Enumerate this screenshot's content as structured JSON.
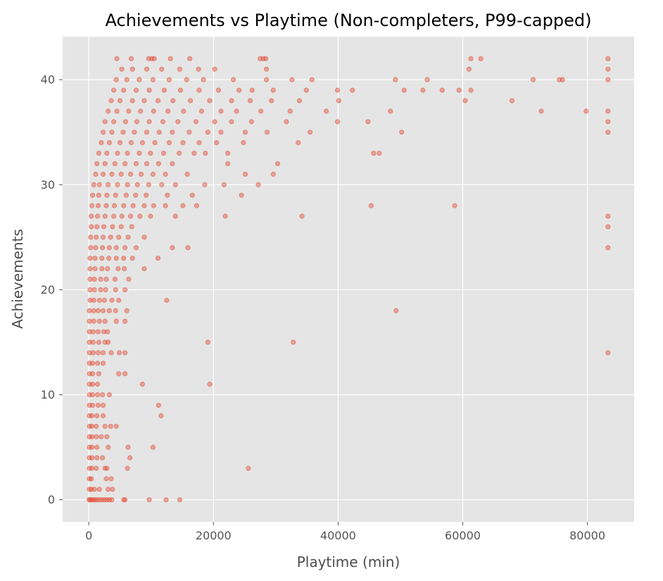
{
  "chart_data": {
    "type": "scatter",
    "title": "Achievements vs Playtime (Non-completers, P99-capped)",
    "xlabel": "Playtime (min)",
    "ylabel": "Achievements",
    "xlim": [
      -4200,
      87500
    ],
    "ylim": [
      -2.1,
      44.1
    ],
    "xticks": [
      0,
      20000,
      40000,
      60000,
      80000
    ],
    "xtick_labels": [
      "0",
      "20000",
      "40000",
      "60000",
      "80000"
    ],
    "yticks": [
      0,
      10,
      20,
      30,
      40
    ],
    "ytick_labels": [
      "0",
      "10",
      "20",
      "30",
      "40"
    ],
    "grid": true,
    "background": "#E5E5E5",
    "marker_color": "#E24A33",
    "points": [
      [
        60,
        0
      ],
      [
        200,
        0
      ],
      [
        400,
        0
      ],
      [
        700,
        0
      ],
      [
        1000,
        0
      ],
      [
        1300,
        0
      ],
      [
        1700,
        0
      ],
      [
        2100,
        0
      ],
      [
        2500,
        0
      ],
      [
        2900,
        0
      ],
      [
        3300,
        0
      ],
      [
        3700,
        0
      ],
      [
        5600,
        0
      ],
      [
        5800,
        0
      ],
      [
        9700,
        0
      ],
      [
        12400,
        0
      ],
      [
        14600,
        0
      ],
      [
        100,
        1
      ],
      [
        400,
        1
      ],
      [
        900,
        1
      ],
      [
        1700,
        1
      ],
      [
        3100,
        1
      ],
      [
        3800,
        1
      ],
      [
        100,
        2
      ],
      [
        400,
        2
      ],
      [
        2800,
        2
      ],
      [
        3600,
        2
      ],
      [
        100,
        3
      ],
      [
        500,
        3
      ],
      [
        1200,
        3
      ],
      [
        2600,
        3
      ],
      [
        2900,
        3
      ],
      [
        6200,
        3
      ],
      [
        25600,
        3
      ],
      [
        100,
        4
      ],
      [
        500,
        4
      ],
      [
        1300,
        4
      ],
      [
        2200,
        4
      ],
      [
        6600,
        4
      ],
      [
        100,
        5
      ],
      [
        500,
        5
      ],
      [
        1300,
        5
      ],
      [
        3100,
        5
      ],
      [
        6300,
        5
      ],
      [
        10300,
        5
      ],
      [
        100,
        6
      ],
      [
        500,
        6
      ],
      [
        1200,
        6
      ],
      [
        2000,
        6
      ],
      [
        2900,
        6
      ],
      [
        100,
        7
      ],
      [
        500,
        7
      ],
      [
        1200,
        7
      ],
      [
        2600,
        7
      ],
      [
        3500,
        7
      ],
      [
        4400,
        7
      ],
      [
        100,
        8
      ],
      [
        500,
        8
      ],
      [
        1300,
        8
      ],
      [
        2300,
        8
      ],
      [
        11600,
        8
      ],
      [
        100,
        9
      ],
      [
        600,
        9
      ],
      [
        1500,
        9
      ],
      [
        2300,
        9
      ],
      [
        11200,
        9
      ],
      [
        100,
        10
      ],
      [
        600,
        10
      ],
      [
        1400,
        10
      ],
      [
        2200,
        10
      ],
      [
        3300,
        10
      ],
      [
        100,
        11
      ],
      [
        600,
        11
      ],
      [
        1400,
        11
      ],
      [
        8600,
        11
      ],
      [
        19400,
        11
      ],
      [
        100,
        12
      ],
      [
        600,
        12
      ],
      [
        1600,
        12
      ],
      [
        4800,
        12
      ],
      [
        5800,
        12
      ],
      [
        100,
        13
      ],
      [
        600,
        13
      ],
      [
        1400,
        13
      ],
      [
        2300,
        13
      ],
      [
        100,
        14
      ],
      [
        700,
        14
      ],
      [
        1500,
        14
      ],
      [
        2300,
        14
      ],
      [
        3600,
        14
      ],
      [
        4900,
        14
      ],
      [
        5800,
        14
      ],
      [
        83300,
        14
      ],
      [
        100,
        15
      ],
      [
        700,
        15
      ],
      [
        1600,
        15
      ],
      [
        2600,
        15
      ],
      [
        3100,
        15
      ],
      [
        19100,
        15
      ],
      [
        32800,
        15
      ],
      [
        100,
        16
      ],
      [
        700,
        16
      ],
      [
        1500,
        16
      ],
      [
        2400,
        16
      ],
      [
        3000,
        16
      ],
      [
        100,
        17
      ],
      [
        800,
        17
      ],
      [
        1700,
        17
      ],
      [
        2600,
        17
      ],
      [
        4400,
        17
      ],
      [
        5800,
        17
      ],
      [
        100,
        18
      ],
      [
        800,
        18
      ],
      [
        1500,
        18
      ],
      [
        2300,
        18
      ],
      [
        3300,
        18
      ],
      [
        4300,
        18
      ],
      [
        6100,
        18
      ],
      [
        49300,
        18
      ],
      [
        200,
        19
      ],
      [
        800,
        19
      ],
      [
        1700,
        19
      ],
      [
        2500,
        19
      ],
      [
        3700,
        19
      ],
      [
        4800,
        19
      ],
      [
        12500,
        19
      ],
      [
        200,
        20
      ],
      [
        900,
        20
      ],
      [
        1900,
        20
      ],
      [
        2700,
        20
      ],
      [
        4300,
        20
      ],
      [
        5800,
        20
      ],
      [
        200,
        21
      ],
      [
        900,
        21
      ],
      [
        1900,
        21
      ],
      [
        2800,
        21
      ],
      [
        4200,
        21
      ],
      [
        6400,
        21
      ],
      [
        200,
        22
      ],
      [
        1000,
        22
      ],
      [
        2100,
        22
      ],
      [
        3000,
        22
      ],
      [
        4700,
        22
      ],
      [
        5700,
        22
      ],
      [
        8900,
        22
      ],
      [
        200,
        23
      ],
      [
        1000,
        23
      ],
      [
        2100,
        23
      ],
      [
        3200,
        23
      ],
      [
        4400,
        23
      ],
      [
        5600,
        23
      ],
      [
        7000,
        23
      ],
      [
        11100,
        23
      ],
      [
        300,
        24
      ],
      [
        1100,
        24
      ],
      [
        2200,
        24
      ],
      [
        3300,
        24
      ],
      [
        4400,
        24
      ],
      [
        5800,
        24
      ],
      [
        7600,
        24
      ],
      [
        13400,
        24
      ],
      [
        15900,
        24
      ],
      [
        83300,
        24
      ],
      [
        300,
        25
      ],
      [
        1200,
        25
      ],
      [
        2300,
        25
      ],
      [
        3500,
        25
      ],
      [
        4800,
        25
      ],
      [
        6300,
        25
      ],
      [
        8900,
        25
      ],
      [
        400,
        26
      ],
      [
        1300,
        26
      ],
      [
        2400,
        26
      ],
      [
        3800,
        26
      ],
      [
        5200,
        26
      ],
      [
        6900,
        26
      ],
      [
        83300,
        26
      ],
      [
        400,
        27
      ],
      [
        1400,
        27
      ],
      [
        2600,
        27
      ],
      [
        4000,
        27
      ],
      [
        5300,
        27
      ],
      [
        6700,
        27
      ],
      [
        8200,
        27
      ],
      [
        9900,
        27
      ],
      [
        13900,
        27
      ],
      [
        21900,
        27
      ],
      [
        34200,
        27
      ],
      [
        83300,
        27
      ],
      [
        500,
        28
      ],
      [
        1500,
        28
      ],
      [
        2800,
        28
      ],
      [
        4100,
        28
      ],
      [
        5600,
        28
      ],
      [
        7100,
        28
      ],
      [
        8900,
        28
      ],
      [
        10400,
        28
      ],
      [
        12300,
        28
      ],
      [
        15100,
        28
      ],
      [
        17300,
        28
      ],
      [
        45300,
        28
      ],
      [
        58700,
        28
      ],
      [
        600,
        29
      ],
      [
        1600,
        29
      ],
      [
        2900,
        29
      ],
      [
        4300,
        29
      ],
      [
        6000,
        29
      ],
      [
        7500,
        29
      ],
      [
        9200,
        29
      ],
      [
        12600,
        29
      ],
      [
        16600,
        29
      ],
      [
        24500,
        29
      ],
      [
        800,
        30
      ],
      [
        1700,
        30
      ],
      [
        3100,
        30
      ],
      [
        4600,
        30
      ],
      [
        6200,
        30
      ],
      [
        7800,
        30
      ],
      [
        9600,
        30
      ],
      [
        11700,
        30
      ],
      [
        13900,
        30
      ],
      [
        18600,
        30
      ],
      [
        21700,
        30
      ],
      [
        27200,
        30
      ],
      [
        1100,
        31
      ],
      [
        2300,
        31
      ],
      [
        3700,
        31
      ],
      [
        5200,
        31
      ],
      [
        6700,
        31
      ],
      [
        8400,
        31
      ],
      [
        10300,
        31
      ],
      [
        12300,
        31
      ],
      [
        15800,
        31
      ],
      [
        25100,
        31
      ],
      [
        29600,
        31
      ],
      [
        1300,
        32
      ],
      [
        2600,
        32
      ],
      [
        4200,
        32
      ],
      [
        5800,
        32
      ],
      [
        7600,
        32
      ],
      [
        9300,
        32
      ],
      [
        11200,
        32
      ],
      [
        13400,
        32
      ],
      [
        22300,
        32
      ],
      [
        30300,
        32
      ],
      [
        1600,
        33
      ],
      [
        2900,
        33
      ],
      [
        4600,
        33
      ],
      [
        6200,
        33
      ],
      [
        8100,
        33
      ],
      [
        9900,
        33
      ],
      [
        12000,
        33
      ],
      [
        14500,
        33
      ],
      [
        16900,
        33
      ],
      [
        18700,
        33
      ],
      [
        22300,
        33
      ],
      [
        45700,
        33
      ],
      [
        46600,
        33
      ],
      [
        2000,
        34
      ],
      [
        3300,
        34
      ],
      [
        5000,
        34
      ],
      [
        6800,
        34
      ],
      [
        8600,
        34
      ],
      [
        10600,
        34
      ],
      [
        12900,
        34
      ],
      [
        15100,
        34
      ],
      [
        17700,
        34
      ],
      [
        20500,
        34
      ],
      [
        24800,
        34
      ],
      [
        33600,
        34
      ],
      [
        2300,
        35
      ],
      [
        3700,
        35
      ],
      [
        5500,
        35
      ],
      [
        7300,
        35
      ],
      [
        9300,
        35
      ],
      [
        11300,
        35
      ],
      [
        13400,
        35
      ],
      [
        16100,
        35
      ],
      [
        19100,
        35
      ],
      [
        21200,
        35
      ],
      [
        25100,
        35
      ],
      [
        28600,
        35
      ],
      [
        35500,
        35
      ],
      [
        50200,
        35
      ],
      [
        83300,
        35
      ],
      [
        2600,
        36
      ],
      [
        4000,
        36
      ],
      [
        5900,
        36
      ],
      [
        7700,
        36
      ],
      [
        9700,
        36
      ],
      [
        11900,
        36
      ],
      [
        14300,
        36
      ],
      [
        17200,
        36
      ],
      [
        20200,
        36
      ],
      [
        22900,
        36
      ],
      [
        26100,
        36
      ],
      [
        31700,
        36
      ],
      [
        39900,
        36
      ],
      [
        44800,
        36
      ],
      [
        83300,
        36
      ],
      [
        3100,
        37
      ],
      [
        4500,
        37
      ],
      [
        6400,
        37
      ],
      [
        8300,
        37
      ],
      [
        10400,
        37
      ],
      [
        12700,
        37
      ],
      [
        15200,
        37
      ],
      [
        18100,
        37
      ],
      [
        21200,
        37
      ],
      [
        23700,
        37
      ],
      [
        27600,
        37
      ],
      [
        32300,
        37
      ],
      [
        38100,
        37
      ],
      [
        48400,
        37
      ],
      [
        72600,
        37
      ],
      [
        79800,
        37
      ],
      [
        83300,
        37
      ],
      [
        3600,
        38
      ],
      [
        5000,
        38
      ],
      [
        7000,
        38
      ],
      [
        8900,
        38
      ],
      [
        11100,
        38
      ],
      [
        13500,
        38
      ],
      [
        16300,
        38
      ],
      [
        19400,
        38
      ],
      [
        22900,
        38
      ],
      [
        25900,
        38
      ],
      [
        29300,
        38
      ],
      [
        33800,
        38
      ],
      [
        40100,
        38
      ],
      [
        60400,
        38
      ],
      [
        67900,
        38
      ],
      [
        4000,
        39
      ],
      [
        5600,
        39
      ],
      [
        7600,
        39
      ],
      [
        9700,
        39
      ],
      [
        12100,
        39
      ],
      [
        14700,
        39
      ],
      [
        17700,
        39
      ],
      [
        20800,
        39
      ],
      [
        24100,
        39
      ],
      [
        26200,
        39
      ],
      [
        29600,
        39
      ],
      [
        34900,
        39
      ],
      [
        39900,
        39
      ],
      [
        42300,
        39
      ],
      [
        50600,
        39
      ],
      [
        53600,
        39
      ],
      [
        56700,
        39
      ],
      [
        59400,
        39
      ],
      [
        61300,
        39
      ],
      [
        4400,
        40
      ],
      [
        6100,
        40
      ],
      [
        8100,
        40
      ],
      [
        10300,
        40
      ],
      [
        12900,
        40
      ],
      [
        15700,
        40
      ],
      [
        18400,
        40
      ],
      [
        23200,
        40
      ],
      [
        28500,
        40
      ],
      [
        32600,
        40
      ],
      [
        35800,
        40
      ],
      [
        49200,
        40
      ],
      [
        54300,
        40
      ],
      [
        71300,
        40
      ],
      [
        75500,
        40
      ],
      [
        76000,
        40
      ],
      [
        83300,
        40
      ],
      [
        5300,
        41
      ],
      [
        7000,
        41
      ],
      [
        9300,
        41
      ],
      [
        11700,
        41
      ],
      [
        14600,
        41
      ],
      [
        17600,
        41
      ],
      [
        20200,
        41
      ],
      [
        28500,
        41
      ],
      [
        61000,
        41
      ],
      [
        83300,
        41
      ],
      [
        4500,
        42
      ],
      [
        6800,
        42
      ],
      [
        9600,
        42
      ],
      [
        10100,
        42
      ],
      [
        10500,
        42
      ],
      [
        13100,
        42
      ],
      [
        16200,
        42
      ],
      [
        27500,
        42
      ],
      [
        28000,
        42
      ],
      [
        28400,
        42
      ],
      [
        61300,
        42
      ],
      [
        62900,
        42
      ],
      [
        83300,
        42
      ]
    ]
  }
}
